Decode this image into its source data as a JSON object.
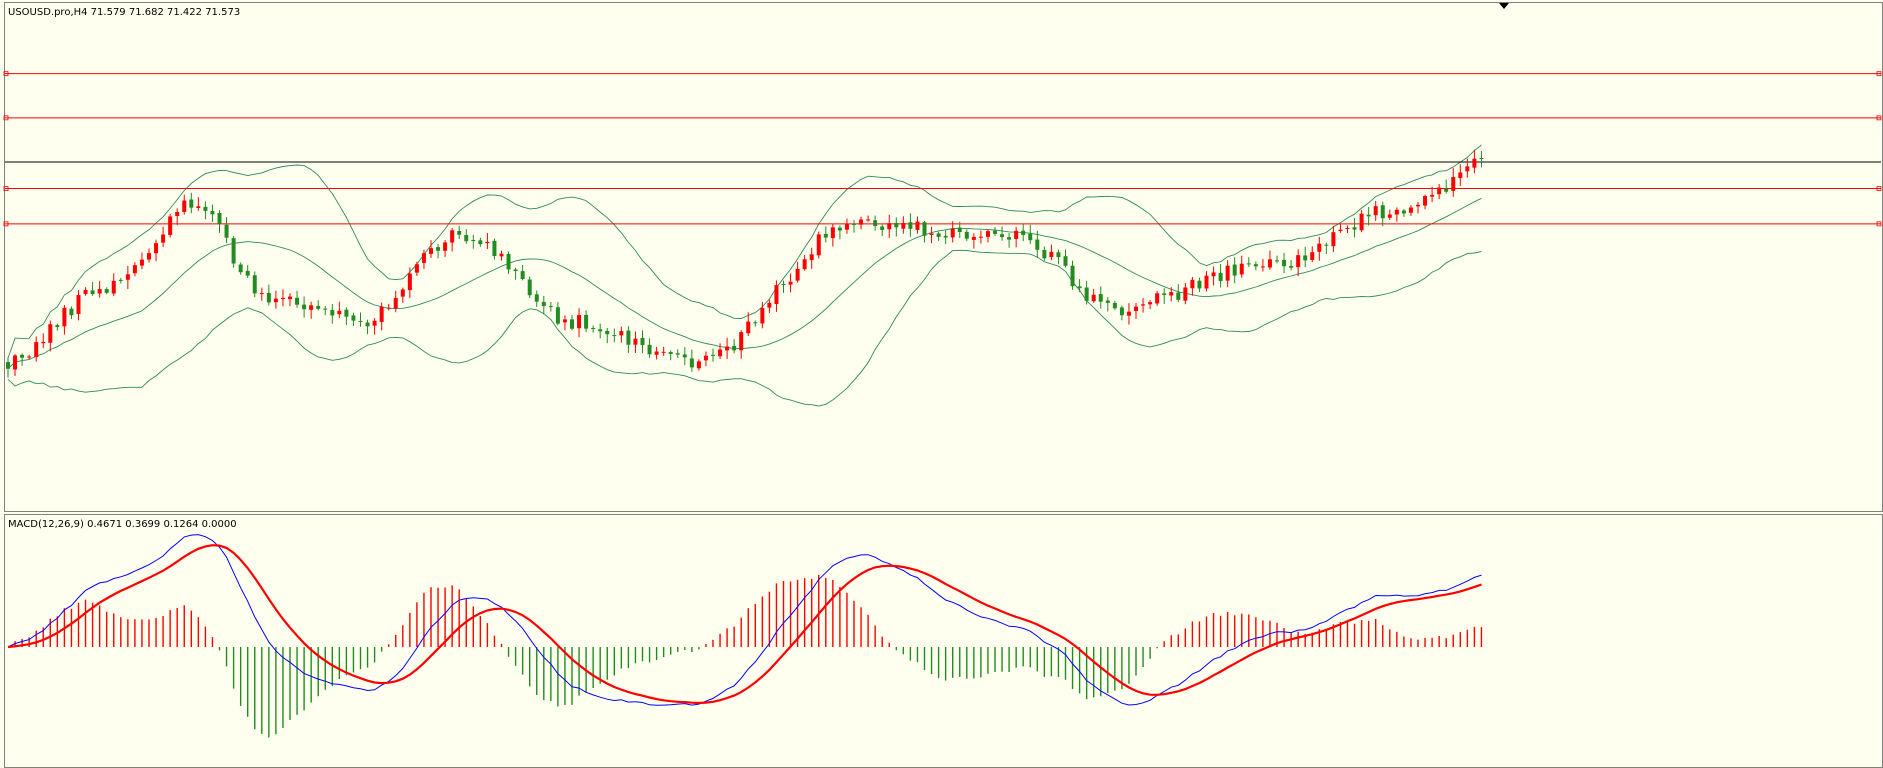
{
  "chart_data": [
    {
      "type": "candlestick",
      "title": "USOUSD.pro,H4  71.579 71.682 71.422 71.573",
      "symbol": "USOUSD.pro",
      "timeframe": "H4",
      "ohlc_last": {
        "open": 71.579,
        "high": 71.682,
        "low": 71.422,
        "close": 71.573
      },
      "grid": false,
      "colors": {
        "up": "#ff0000",
        "down": "#228b22",
        "bands": "#2e8b57",
        "level": "#ff0000",
        "bid": "#000000",
        "background": "#fffff0"
      },
      "horizontal_levels": {
        "red": [
          73.9,
          72.9,
          71.3,
          70.5
        ],
        "current": 71.9
      },
      "ylim": [
        64.0,
        75.5
      ],
      "trend_path": [
        [
          0,
          -1.0
        ],
        [
          14,
          -0.15
        ],
        [
          27,
          0.8
        ],
        [
          36,
          -0.25
        ],
        [
          50,
          -0.55
        ],
        [
          64,
          0.45
        ],
        [
          80,
          -0.55
        ],
        [
          98,
          -1.0
        ],
        [
          120,
          0.55
        ],
        [
          143,
          0.4
        ],
        [
          157,
          -0.4
        ],
        [
          180,
          0.1
        ],
        [
          198,
          0.75
        ],
        [
          210,
          1.25
        ]
      ],
      "num_bars": 210
    },
    {
      "type": "macd",
      "title": "MACD(12,26,9) 0.4671 0.3699 0.1264 0.0000",
      "params": [
        12,
        26,
        9
      ],
      "values": [
        0.4671,
        0.3699,
        0.1264,
        0.0
      ],
      "colors": {
        "hist_pos": "#ff0000",
        "hist_neg": "#228b22",
        "macd": "#0000ff",
        "signal": "#ff0000"
      }
    }
  ]
}
